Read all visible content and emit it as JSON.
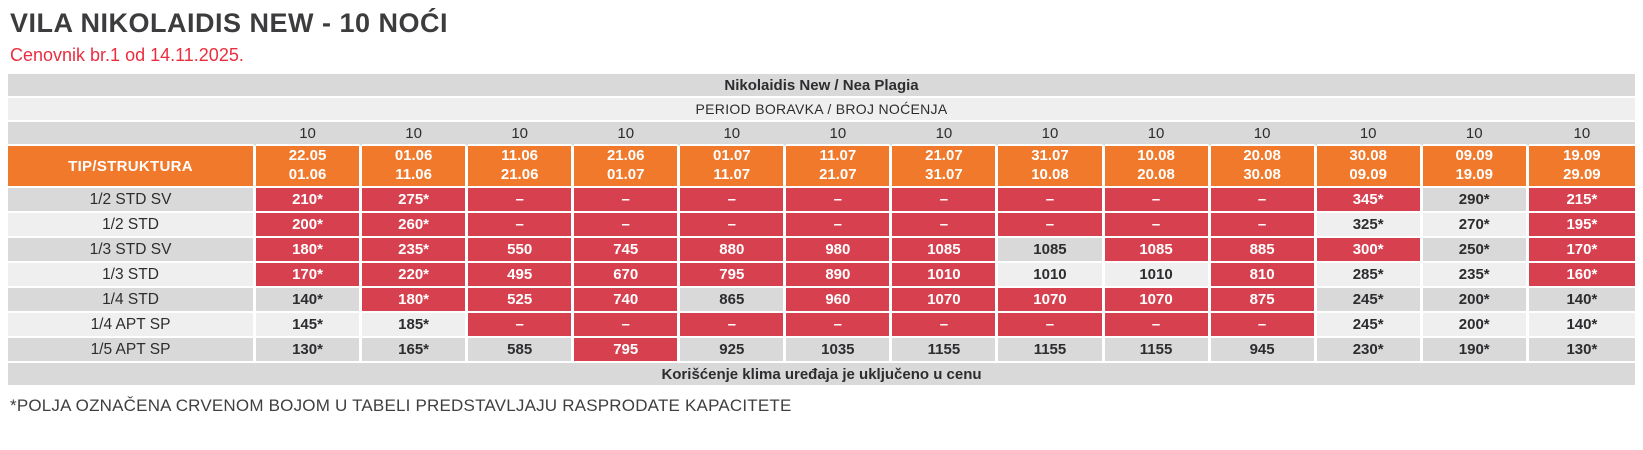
{
  "page": {
    "title": "VILA NIKOLAIDIS NEW - 10 NOĆI",
    "subtitle": "Cenovnik br.1 od 14.11.2025.",
    "footnote": "*POLJA OZNAČENA CRVENOM BOJOM U TABELI PREDSTAVLJAJU RASPRODATE KAPACITETE"
  },
  "table": {
    "hotel_header": "Nikolaidis New / Nea Plagia",
    "period_header": "PERIOD BORAVKA / BROJ NOĆENJA",
    "type_column_header": "TIP/STRUKTURA",
    "nights": [
      "10",
      "10",
      "10",
      "10",
      "10",
      "10",
      "10",
      "10",
      "10",
      "10",
      "10",
      "10",
      "10"
    ],
    "periods": [
      {
        "from": "22.05",
        "to": "01.06"
      },
      {
        "from": "01.06",
        "to": "11.06"
      },
      {
        "from": "11.06",
        "to": "21.06"
      },
      {
        "from": "21.06",
        "to": "01.07"
      },
      {
        "from": "01.07",
        "to": "11.07"
      },
      {
        "from": "11.07",
        "to": "21.07"
      },
      {
        "from": "21.07",
        "to": "31.07"
      },
      {
        "from": "31.07",
        "to": "10.08"
      },
      {
        "from": "10.08",
        "to": "20.08"
      },
      {
        "from": "20.08",
        "to": "30.08"
      },
      {
        "from": "30.08",
        "to": "09.09"
      },
      {
        "from": "09.09",
        "to": "19.09"
      },
      {
        "from": "19.09",
        "to": "29.09"
      }
    ],
    "rows": [
      {
        "label": "1/2 STD SV",
        "cells": [
          {
            "value": "210*",
            "sold_out": true
          },
          {
            "value": "275*",
            "sold_out": true
          },
          {
            "value": "–",
            "sold_out": true
          },
          {
            "value": "–",
            "sold_out": true
          },
          {
            "value": "–",
            "sold_out": true
          },
          {
            "value": "–",
            "sold_out": true
          },
          {
            "value": "–",
            "sold_out": true
          },
          {
            "value": "–",
            "sold_out": true
          },
          {
            "value": "–",
            "sold_out": true
          },
          {
            "value": "–",
            "sold_out": true
          },
          {
            "value": "345*",
            "sold_out": true
          },
          {
            "value": "290*",
            "sold_out": false
          },
          {
            "value": "215*",
            "sold_out": true
          }
        ]
      },
      {
        "label": "1/2 STD",
        "cells": [
          {
            "value": "200*",
            "sold_out": true
          },
          {
            "value": "260*",
            "sold_out": true
          },
          {
            "value": "–",
            "sold_out": true
          },
          {
            "value": "–",
            "sold_out": true
          },
          {
            "value": "–",
            "sold_out": true
          },
          {
            "value": "–",
            "sold_out": true
          },
          {
            "value": "–",
            "sold_out": true
          },
          {
            "value": "–",
            "sold_out": true
          },
          {
            "value": "–",
            "sold_out": true
          },
          {
            "value": "–",
            "sold_out": true
          },
          {
            "value": "325*",
            "sold_out": false
          },
          {
            "value": "270*",
            "sold_out": false
          },
          {
            "value": "195*",
            "sold_out": true
          }
        ]
      },
      {
        "label": "1/3 STD SV",
        "cells": [
          {
            "value": "180*",
            "sold_out": true
          },
          {
            "value": "235*",
            "sold_out": true
          },
          {
            "value": "550",
            "sold_out": true
          },
          {
            "value": "745",
            "sold_out": true
          },
          {
            "value": "880",
            "sold_out": true
          },
          {
            "value": "980",
            "sold_out": true
          },
          {
            "value": "1085",
            "sold_out": true
          },
          {
            "value": "1085",
            "sold_out": false
          },
          {
            "value": "1085",
            "sold_out": true
          },
          {
            "value": "885",
            "sold_out": true
          },
          {
            "value": "300*",
            "sold_out": true
          },
          {
            "value": "250*",
            "sold_out": false
          },
          {
            "value": "170*",
            "sold_out": true
          }
        ]
      },
      {
        "label": "1/3 STD",
        "cells": [
          {
            "value": "170*",
            "sold_out": true
          },
          {
            "value": "220*",
            "sold_out": true
          },
          {
            "value": "495",
            "sold_out": true
          },
          {
            "value": "670",
            "sold_out": true
          },
          {
            "value": "795",
            "sold_out": true
          },
          {
            "value": "890",
            "sold_out": true
          },
          {
            "value": "1010",
            "sold_out": true
          },
          {
            "value": "1010",
            "sold_out": false
          },
          {
            "value": "1010",
            "sold_out": false
          },
          {
            "value": "810",
            "sold_out": true
          },
          {
            "value": "285*",
            "sold_out": false
          },
          {
            "value": "235*",
            "sold_out": false
          },
          {
            "value": "160*",
            "sold_out": true
          }
        ]
      },
      {
        "label": "1/4 STD",
        "cells": [
          {
            "value": "140*",
            "sold_out": false
          },
          {
            "value": "180*",
            "sold_out": true
          },
          {
            "value": "525",
            "sold_out": true
          },
          {
            "value": "740",
            "sold_out": true
          },
          {
            "value": "865",
            "sold_out": false
          },
          {
            "value": "960",
            "sold_out": true
          },
          {
            "value": "1070",
            "sold_out": true
          },
          {
            "value": "1070",
            "sold_out": true
          },
          {
            "value": "1070",
            "sold_out": true
          },
          {
            "value": "875",
            "sold_out": true
          },
          {
            "value": "245*",
            "sold_out": false
          },
          {
            "value": "200*",
            "sold_out": false
          },
          {
            "value": "140*",
            "sold_out": false
          }
        ]
      },
      {
        "label": "1/4 APT SP",
        "cells": [
          {
            "value": "145*",
            "sold_out": false
          },
          {
            "value": "185*",
            "sold_out": false
          },
          {
            "value": "–",
            "sold_out": true
          },
          {
            "value": "–",
            "sold_out": true
          },
          {
            "value": "–",
            "sold_out": true
          },
          {
            "value": "–",
            "sold_out": true
          },
          {
            "value": "–",
            "sold_out": true
          },
          {
            "value": "–",
            "sold_out": true
          },
          {
            "value": "–",
            "sold_out": true
          },
          {
            "value": "–",
            "sold_out": true
          },
          {
            "value": "245*",
            "sold_out": false
          },
          {
            "value": "200*",
            "sold_out": false
          },
          {
            "value": "140*",
            "sold_out": false
          }
        ]
      },
      {
        "label": "1/5 APT SP",
        "cells": [
          {
            "value": "130*",
            "sold_out": false
          },
          {
            "value": "165*",
            "sold_out": false
          },
          {
            "value": "585",
            "sold_out": false
          },
          {
            "value": "795",
            "sold_out": true
          },
          {
            "value": "925",
            "sold_out": false
          },
          {
            "value": "1035",
            "sold_out": false
          },
          {
            "value": "1155",
            "sold_out": false
          },
          {
            "value": "1155",
            "sold_out": false
          },
          {
            "value": "1155",
            "sold_out": false
          },
          {
            "value": "945",
            "sold_out": false
          },
          {
            "value": "230*",
            "sold_out": false
          },
          {
            "value": "190*",
            "sold_out": false
          },
          {
            "value": "130*",
            "sold_out": false
          }
        ]
      }
    ],
    "footer_note": "Korišćenje klima uređaja je uključeno u cenu"
  },
  "colors": {
    "accent_orange": "#f0792b",
    "sold_out_red": "#d7414f",
    "stripe_dark": "#d9d9d9",
    "stripe_light": "#efefef",
    "subtitle_red": "#ea2e3f"
  }
}
